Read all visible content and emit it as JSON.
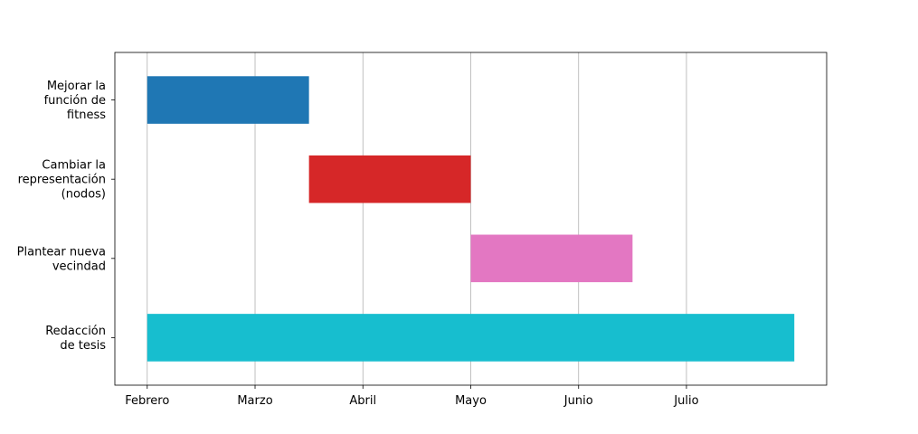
{
  "chart_data": {
    "type": "bar",
    "orientation": "horizontal",
    "title": "",
    "xlabel": "",
    "ylabel": "",
    "x_ticks": [
      "Febrero",
      "Marzo",
      "Abril",
      "Mayo",
      "Junio",
      "Julio"
    ],
    "x_range": [
      -0.3,
      6.3
    ],
    "grid": "x-only",
    "tasks": [
      {
        "label_lines": [
          "Mejorar la",
          "función de",
          "fitness"
        ],
        "start": 0,
        "end": 1.5,
        "color": "#1f77b4"
      },
      {
        "label_lines": [
          "Cambiar la",
          "representación",
          "(nodos)"
        ],
        "start": 1.5,
        "end": 3,
        "color": "#d62728"
      },
      {
        "label_lines": [
          "Plantear nueva",
          "vecindad"
        ],
        "start": 3,
        "end": 4.5,
        "color": "#e377c2"
      },
      {
        "label_lines": [
          "Redacción",
          "de tesis"
        ],
        "start": 0,
        "end": 6,
        "color": "#17becf"
      }
    ]
  }
}
